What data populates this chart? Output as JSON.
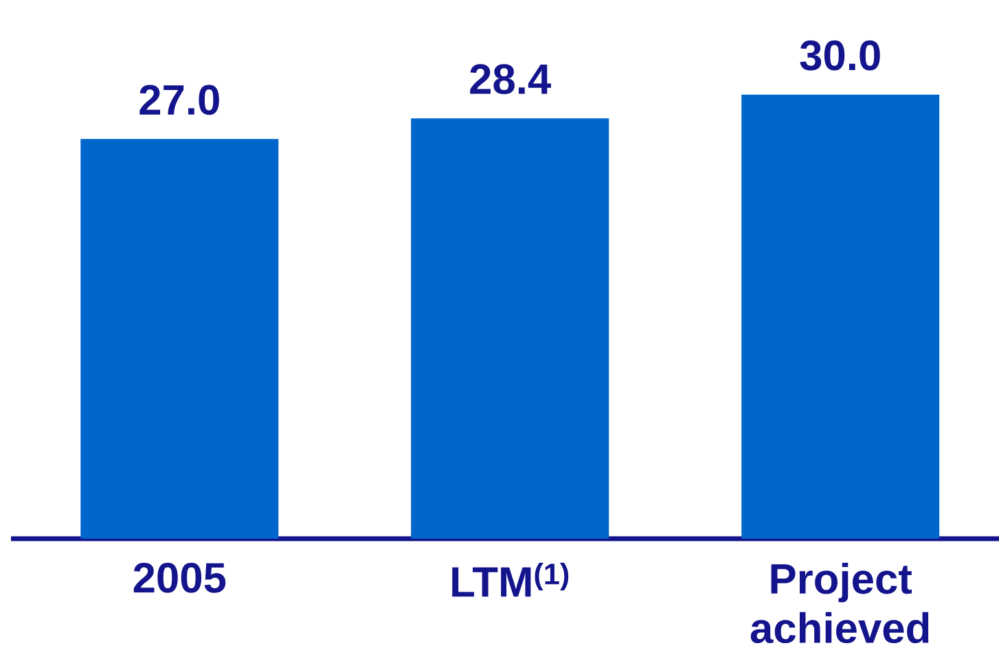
{
  "chart_data": {
    "type": "bar",
    "categories": [
      "2005",
      "LTM$^{(1)}$",
      "Project achieved"
    ],
    "values": [
      27.0,
      28.4,
      30.0
    ],
    "value_labels": [
      "27.0",
      "28.4",
      "30.0"
    ],
    "color": "#0066cc"
  }
}
